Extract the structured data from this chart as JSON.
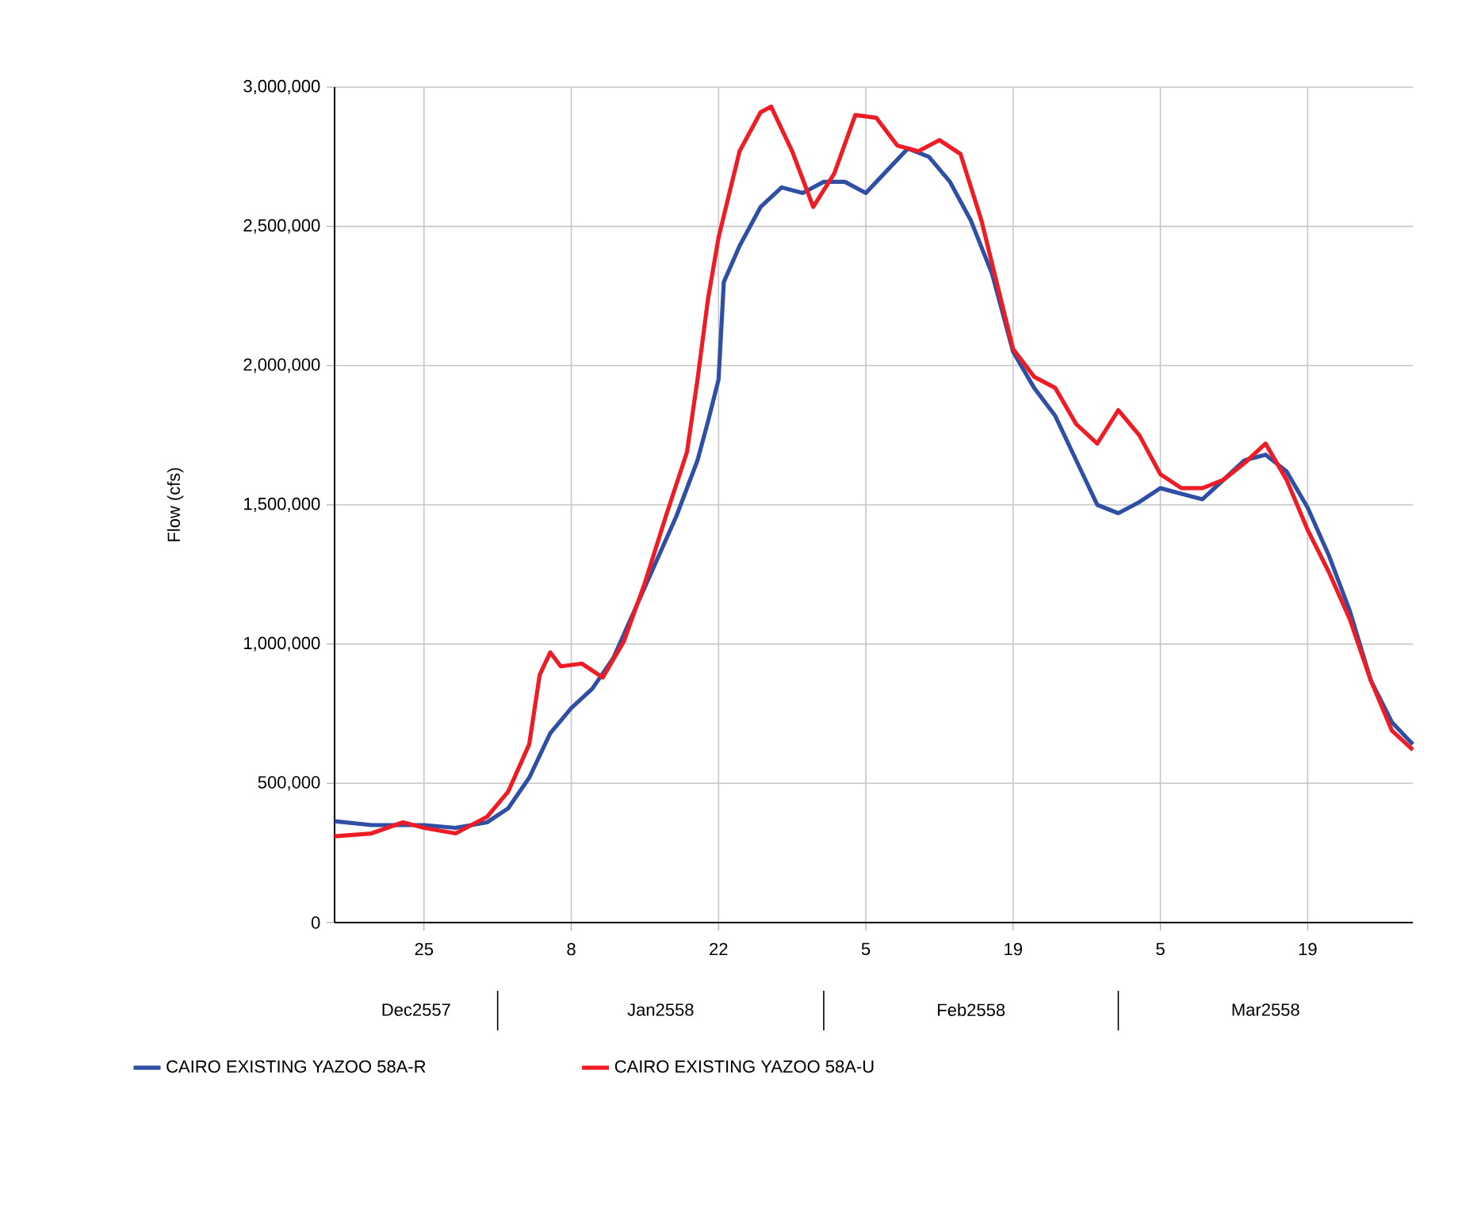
{
  "chart_data": {
    "type": "line",
    "ylabel": "Flow (cfs)",
    "xlim": [
      "2557-12-16T12:00",
      "2558-03-29"
    ],
    "ylim": [
      0,
      3000000
    ],
    "xticks": [
      {
        "value": "2557-12-25",
        "label": "25"
      },
      {
        "value": "2558-01-08",
        "label": "8"
      },
      {
        "value": "2558-01-22",
        "label": "22"
      },
      {
        "value": "2558-02-05",
        "label": "5"
      },
      {
        "value": "2558-02-19",
        "label": "19"
      },
      {
        "value": "2558-03-05",
        "label": "5"
      },
      {
        "value": "2558-03-19",
        "label": "19"
      }
    ],
    "annotations": [
      "Dec2557",
      "Jan2558",
      "Feb2558",
      "Mar2558"
    ],
    "yticks": [
      0,
      {
        "value": 500000,
        "label": "500,000"
      },
      {
        "value": 1000000,
        "label": "1,000,000"
      },
      {
        "value": 1500000,
        "label": "1,500,000"
      },
      {
        "value": 2000000,
        "label": "2,000,000"
      },
      {
        "value": 2500000,
        "label": "2,500,000"
      },
      {
        "value": 3000000,
        "label": "3,000,000"
      }
    ],
    "grid": true,
    "legend": "bottom",
    "line_style": "solid",
    "series": [
      {
        "name": "CAIRO EXISTING YAZOO 58A-R",
        "color": "#2e4fa3",
        "x": [
          "2557-12-16T12:00",
          "2557-12-20",
          "2557-12-25",
          "2557-12-28",
          "2557-12-31",
          "2558-01-02",
          "2558-01-04",
          "2558-01-06",
          "2558-01-08",
          "2558-01-10",
          "2558-01-12",
          "2558-01-14",
          "2558-01-16",
          "2558-01-18",
          "2558-01-20",
          "2558-01-21",
          "2558-01-22",
          "2558-01-22T12:00",
          "2558-01-24",
          "2558-01-26",
          "2558-01-28",
          "2558-01-30",
          "2558-02-01",
          "2558-02-03",
          "2558-02-05",
          "2558-02-07",
          "2558-02-09",
          "2558-02-11",
          "2558-02-13",
          "2558-02-15",
          "2558-02-17",
          "2558-02-19",
          "2558-02-21",
          "2558-02-23",
          "2558-02-25",
          "2558-02-27",
          "2558-03-01",
          "2558-03-03",
          "2558-03-05",
          "2558-03-07",
          "2558-03-09",
          "2558-03-11",
          "2558-03-13",
          "2558-03-15",
          "2558-03-17",
          "2558-03-19",
          "2558-03-21",
          "2558-03-23",
          "2558-03-25",
          "2558-03-27",
          "2558-03-29"
        ],
        "values": [
          364000,
          350000,
          350000,
          340000,
          360000,
          410000,
          520000,
          680000,
          770000,
          840000,
          950000,
          1120000,
          1290000,
          1460000,
          1660000,
          1800000,
          1950000,
          2300000,
          2430000,
          2570000,
          2640000,
          2620000,
          2660000,
          2660000,
          2620000,
          2700000,
          2780000,
          2750000,
          2660000,
          2520000,
          2330000,
          2050000,
          1920000,
          1820000,
          1660000,
          1500000,
          1470000,
          1510000,
          1560000,
          1540000,
          1520000,
          1590000,
          1660000,
          1680000,
          1620000,
          1490000,
          1320000,
          1120000,
          870000,
          720000,
          640000
        ]
      },
      {
        "name": "CAIRO EXISTING YAZOO 58A-U",
        "color": "#ee1c25",
        "x": [
          "2557-12-16T12:00",
          "2557-12-20",
          "2557-12-23",
          "2557-12-25",
          "2557-12-28",
          "2557-12-31",
          "2558-01-02",
          "2558-01-04",
          "2558-01-05",
          "2558-01-06",
          "2558-01-07",
          "2558-01-09",
          "2558-01-11",
          "2558-01-13",
          "2558-01-15",
          "2558-01-17",
          "2558-01-19",
          "2558-01-20",
          "2558-01-21",
          "2558-01-22",
          "2558-01-24",
          "2558-01-26",
          "2558-01-27",
          "2558-01-29",
          "2558-01-31",
          "2558-02-02",
          "2558-02-04",
          "2558-02-06",
          "2558-02-08",
          "2558-02-10",
          "2558-02-12",
          "2558-02-14",
          "2558-02-16",
          "2558-02-19",
          "2558-02-21",
          "2558-02-23",
          "2558-02-25",
          "2558-02-27",
          "2558-03-01",
          "2558-03-03",
          "2558-03-05",
          "2558-03-07",
          "2558-03-09",
          "2558-03-11",
          "2558-03-13",
          "2558-03-15",
          "2558-03-17",
          "2558-03-19",
          "2558-03-21",
          "2558-03-23",
          "2558-03-25",
          "2558-03-27",
          "2558-03-29"
        ],
        "values": [
          310000,
          320000,
          360000,
          340000,
          320000,
          380000,
          470000,
          640000,
          890000,
          970000,
          920000,
          930000,
          880000,
          1010000,
          1220000,
          1460000,
          1690000,
          1950000,
          2240000,
          2460000,
          2770000,
          2910000,
          2930000,
          2770000,
          2570000,
          2690000,
          2900000,
          2890000,
          2790000,
          2770000,
          2810000,
          2760000,
          2520000,
          2060000,
          1960000,
          1920000,
          1790000,
          1720000,
          1840000,
          1750000,
          1610000,
          1560000,
          1560000,
          1590000,
          1650000,
          1720000,
          1590000,
          1410000,
          1260000,
          1090000,
          870000,
          690000,
          620000
        ]
      }
    ]
  }
}
